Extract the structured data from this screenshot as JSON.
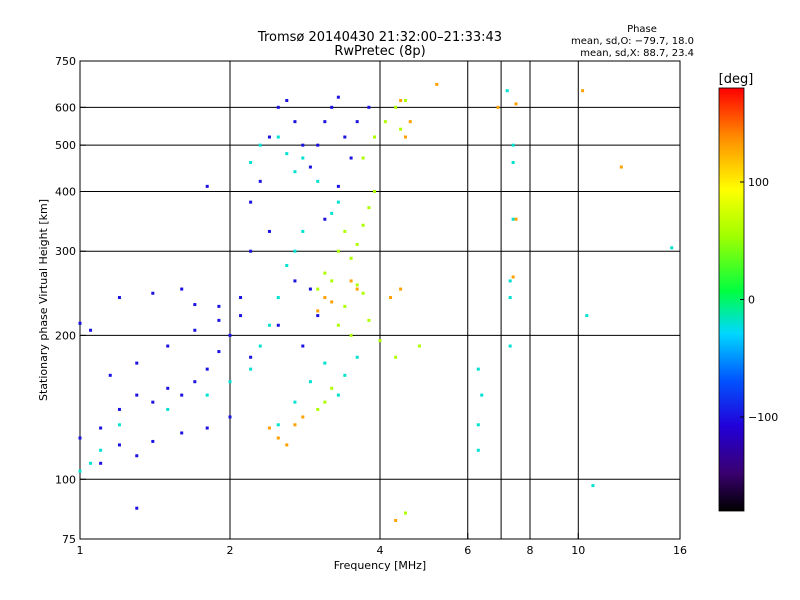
{
  "chart_data": {
    "type": "scatter",
    "title": "Tromsø 20140430 21:32:00–21:33:43",
    "subtitle": "RwPretec (8p)",
    "xlabel": "Frequency [MHz]",
    "ylabel": "Stationary phase Virtual Height [km]",
    "x_scale": "log",
    "y_scale": "log",
    "xlim": [
      1,
      16
    ],
    "ylim": [
      75,
      750
    ],
    "x_ticks": [
      1,
      2,
      4,
      6,
      8,
      10,
      16
    ],
    "x_tick_labels": [
      "1",
      "2",
      "4",
      "6",
      "8",
      "10",
      "16"
    ],
    "x_gridlines": [
      2,
      4,
      6,
      7,
      8,
      10
    ],
    "y_ticks": [
      75,
      100,
      200,
      300,
      400,
      500,
      600,
      750
    ],
    "y_tick_labels": [
      "75",
      "100",
      "200",
      "300",
      "400",
      "500",
      "600",
      "750"
    ],
    "grid": true,
    "phase_stats": {
      "heading": "Phase",
      "o_line": "mean, sd,O: −79.7, 18.0",
      "x_line": "mean, sd,X:  88.7, 23.4"
    },
    "colorbar": {
      "label": "[deg]",
      "range": [
        -180,
        180
      ],
      "ticks": [
        100,
        0,
        -100
      ],
      "tick_labels": [
        "100",
        "0",
        "−100"
      ],
      "colormap": "rainbow (black-purple-blue-cyan-green-yellow-orange-red)"
    },
    "series": [
      {
        "phase": -100,
        "points": [
          [
            1.0,
            122
          ],
          [
            1.1,
            128
          ],
          [
            1.2,
            140
          ],
          [
            1.3,
            150
          ],
          [
            1.4,
            145
          ],
          [
            1.5,
            155
          ],
          [
            1.6,
            150
          ],
          [
            1.7,
            160
          ],
          [
            1.8,
            170
          ],
          [
            1.9,
            185
          ],
          [
            2.0,
            200
          ],
          [
            2.1,
            240
          ],
          [
            2.2,
            300
          ],
          [
            2.3,
            420
          ],
          [
            2.4,
            520
          ],
          [
            2.5,
            600
          ],
          [
            2.6,
            620
          ],
          [
            2.7,
            560
          ],
          [
            2.8,
            500
          ],
          [
            2.9,
            450
          ],
          [
            3.0,
            500
          ],
          [
            3.1,
            560
          ],
          [
            3.2,
            600
          ],
          [
            3.3,
            630
          ],
          [
            3.4,
            520
          ],
          [
            3.5,
            470
          ],
          [
            1.2,
            240
          ],
          [
            1.4,
            245
          ],
          [
            1.6,
            250
          ],
          [
            1.7,
            232
          ],
          [
            1.9,
            230
          ],
          [
            2.1,
            220
          ],
          [
            1.15,
            165
          ],
          [
            1.3,
            175
          ],
          [
            1.5,
            190
          ],
          [
            1.7,
            205
          ],
          [
            1.9,
            215
          ],
          [
            1.0,
            212
          ],
          [
            1.05,
            205
          ],
          [
            1.2,
            118
          ],
          [
            1.4,
            120
          ],
          [
            1.6,
            125
          ],
          [
            1.8,
            128
          ],
          [
            2.0,
            135
          ],
          [
            1.1,
            108
          ],
          [
            1.3,
            112
          ],
          [
            2.2,
            380
          ],
          [
            2.4,
            330
          ],
          [
            2.7,
            260
          ],
          [
            2.9,
            250
          ],
          [
            3.1,
            350
          ],
          [
            3.3,
            410
          ],
          [
            3.6,
            560
          ],
          [
            3.8,
            600
          ],
          [
            2.2,
            180
          ],
          [
            2.5,
            210
          ],
          [
            2.8,
            190
          ],
          [
            3.0,
            220
          ],
          [
            1.3,
            87
          ],
          [
            1.8,
            410
          ]
        ]
      },
      {
        "phase": -20,
        "points": [
          [
            1.0,
            104
          ],
          [
            1.05,
            108
          ],
          [
            1.1,
            115
          ],
          [
            1.2,
            130
          ],
          [
            1.5,
            140
          ],
          [
            1.8,
            150
          ],
          [
            2.0,
            160
          ],
          [
            2.2,
            170
          ],
          [
            2.3,
            190
          ],
          [
            2.4,
            210
          ],
          [
            2.5,
            240
          ],
          [
            2.6,
            280
          ],
          [
            2.7,
            300
          ],
          [
            2.8,
            330
          ],
          [
            2.5,
            520
          ],
          [
            2.6,
            480
          ],
          [
            2.7,
            440
          ],
          [
            2.8,
            470
          ],
          [
            3.0,
            420
          ],
          [
            3.2,
            360
          ],
          [
            3.3,
            380
          ],
          [
            2.2,
            460
          ],
          [
            2.3,
            500
          ],
          [
            2.9,
            160
          ],
          [
            3.1,
            175
          ],
          [
            3.3,
            150
          ],
          [
            3.4,
            165
          ],
          [
            3.6,
            180
          ],
          [
            2.7,
            145
          ],
          [
            2.5,
            130
          ],
          [
            7.4,
            460
          ],
          [
            7.4,
            500
          ],
          [
            7.4,
            350
          ],
          [
            7.3,
            260
          ],
          [
            7.3,
            240
          ],
          [
            7.3,
            190
          ],
          [
            6.3,
            170
          ],
          [
            6.4,
            150
          ],
          [
            6.3,
            130
          ],
          [
            6.3,
            115
          ],
          [
            7.2,
            650
          ],
          [
            15.4,
            305
          ],
          [
            10.7,
            97
          ],
          [
            10.4,
            220
          ]
        ]
      },
      {
        "phase": 60,
        "points": [
          [
            3.2,
            260
          ],
          [
            3.3,
            300
          ],
          [
            3.4,
            330
          ],
          [
            3.5,
            290
          ],
          [
            3.6,
            310
          ],
          [
            3.7,
            340
          ],
          [
            3.8,
            370
          ],
          [
            3.9,
            400
          ],
          [
            3.7,
            470
          ],
          [
            3.9,
            520
          ],
          [
            4.1,
            560
          ],
          [
            4.3,
            600
          ],
          [
            4.5,
            620
          ],
          [
            4.4,
            540
          ],
          [
            3.0,
            140
          ],
          [
            3.1,
            145
          ],
          [
            3.2,
            155
          ],
          [
            3.3,
            210
          ],
          [
            3.4,
            230
          ],
          [
            3.5,
            200
          ],
          [
            3.0,
            250
          ],
          [
            3.1,
            270
          ],
          [
            3.6,
            255
          ],
          [
            3.7,
            245
          ],
          [
            3.8,
            215
          ],
          [
            4.0,
            195
          ],
          [
            4.3,
            180
          ],
          [
            4.5,
            85
          ],
          [
            4.8,
            190
          ]
        ]
      },
      {
        "phase": 130,
        "points": [
          [
            2.4,
            128
          ],
          [
            2.5,
            122
          ],
          [
            2.6,
            118
          ],
          [
            2.7,
            130
          ],
          [
            2.8,
            135
          ],
          [
            3.0,
            225
          ],
          [
            3.1,
            240
          ],
          [
            3.2,
            235
          ],
          [
            3.5,
            260
          ],
          [
            3.6,
            250
          ],
          [
            4.5,
            520
          ],
          [
            4.6,
            560
          ],
          [
            4.4,
            620
          ],
          [
            4.2,
            240
          ],
          [
            4.4,
            250
          ],
          [
            5.2,
            670
          ],
          [
            6.9,
            600
          ],
          [
            7.5,
            610
          ],
          [
            7.5,
            350
          ],
          [
            7.4,
            265
          ],
          [
            12.2,
            450
          ],
          [
            10.2,
            650
          ],
          [
            4.3,
            82
          ]
        ]
      }
    ]
  }
}
